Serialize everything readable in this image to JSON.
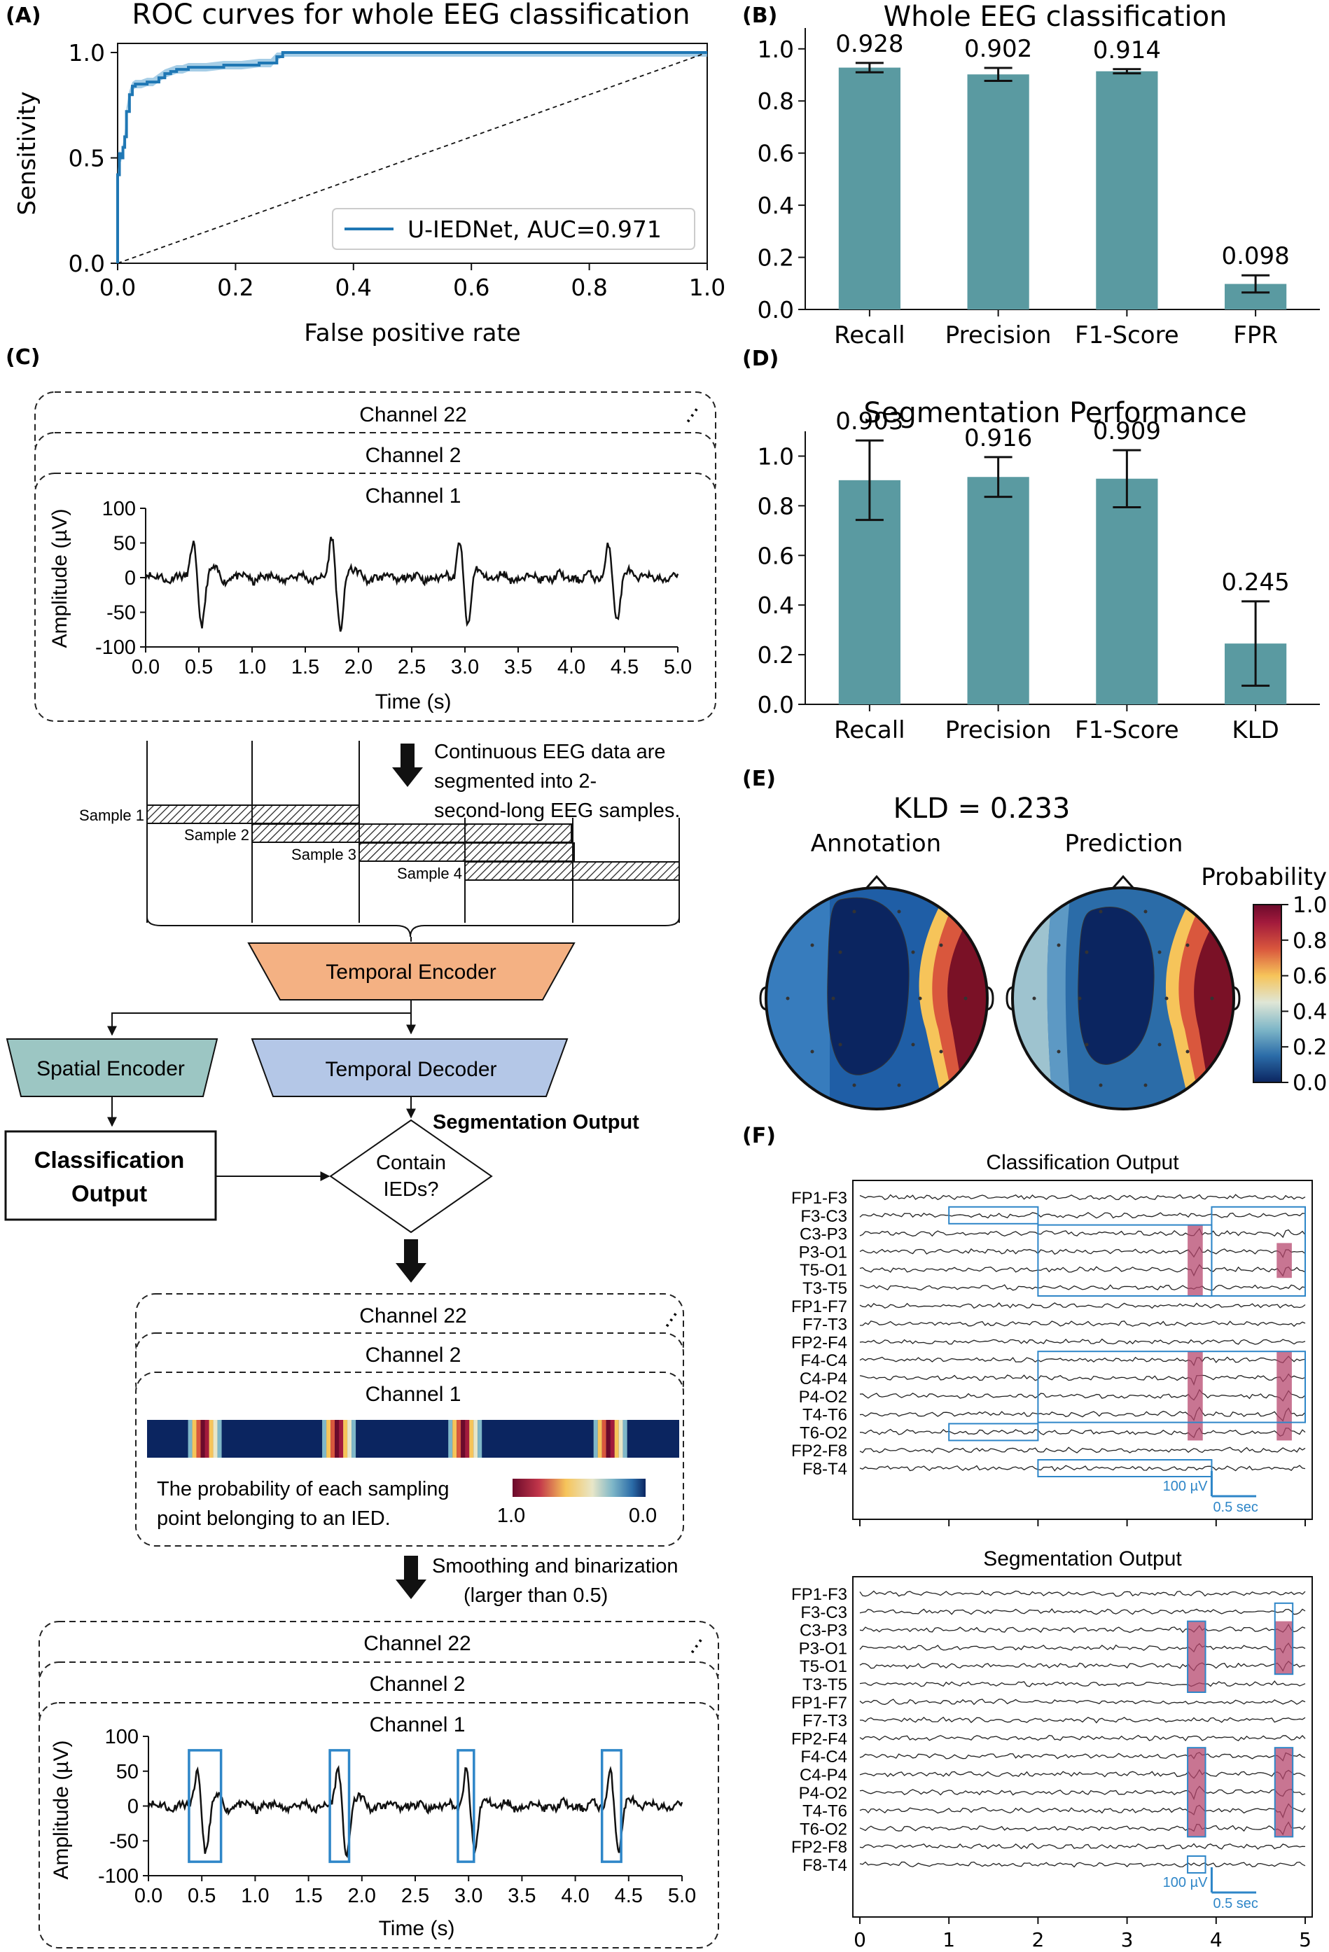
{
  "panel_labels": {
    "a": "(A)",
    "b": "(B)",
    "c": "(C)",
    "d": "(D)",
    "e": "(E)",
    "f": "(F)"
  },
  "colors": {
    "teal_bar": "#5a9aa1",
    "roc_line": "#1f77b4",
    "roc_band": "#7fb8dc",
    "encoder_orange": "#f4b183",
    "spatial_teal": "#9cc6c3",
    "decoder_blue": "#b4c7e7",
    "ied_highlight": "#b5476e",
    "box_blue": "#2e86c8"
  },
  "chart_data": [
    {
      "id": "A",
      "type": "line",
      "title": "ROC curves for whole EEG classification",
      "xlabel": "False positive rate",
      "ylabel": "Sensitivity",
      "xlim": [
        0,
        1
      ],
      "ylim": [
        0,
        1
      ],
      "xticks": [
        "0.0",
        "0.2",
        "0.4",
        "0.6",
        "0.8",
        "1.0"
      ],
      "yticks": [
        "0.0",
        "0.5",
        "1.0"
      ],
      "legend": "lower-right",
      "series": [
        {
          "name": "U-IEDNet, AUC=0.971",
          "x": [
            0,
            0,
            0.003,
            0.006,
            0.009,
            0.012,
            0.015,
            0.02,
            0.025,
            0.03,
            0.04,
            0.05,
            0.06,
            0.07,
            0.08,
            0.09,
            0.1,
            0.11,
            0.12,
            0.15,
            0.18,
            0.21,
            0.24,
            0.26,
            0.27,
            0.28,
            1.0
          ],
          "y": [
            0,
            0.42,
            0.52,
            0.5,
            0.55,
            0.6,
            0.72,
            0.8,
            0.84,
            0.85,
            0.85,
            0.86,
            0.86,
            0.88,
            0.9,
            0.91,
            0.92,
            0.92,
            0.93,
            0.93,
            0.94,
            0.94,
            0.95,
            0.95,
            0.98,
            1.0,
            1.0
          ]
        },
        {
          "x": [
            0,
            1
          ],
          "y": [
            0,
            1
          ]
        }
      ]
    },
    {
      "id": "B",
      "type": "bar",
      "title": "Whole EEG classification",
      "categories": [
        "Recall",
        "Precision",
        "F1-Score",
        "FPR"
      ],
      "values": [
        0.928,
        0.902,
        0.914,
        0.098
      ],
      "errors": [
        0.018,
        0.025,
        0.008,
        0.033
      ],
      "value_labels": [
        "0.928",
        "0.902",
        "0.914",
        "0.098"
      ],
      "ylim": [
        0,
        1.08
      ],
      "yticks": [
        "0.0",
        "0.2",
        "0.4",
        "0.6",
        "0.8",
        "1.0"
      ]
    },
    {
      "id": "D",
      "type": "bar",
      "title": "Segmentation Performance",
      "categories": [
        "Recall",
        "Precision",
        "F1-Score",
        "KLD"
      ],
      "values": [
        0.903,
        0.916,
        0.909,
        0.245
      ],
      "errors": [
        0.16,
        0.08,
        0.115,
        0.17
      ],
      "value_labels": [
        "0.903",
        "0.916",
        "0.909",
        "0.245"
      ],
      "ylim": [
        0,
        1.1
      ],
      "yticks": [
        "0.0",
        "0.2",
        "0.4",
        "0.6",
        "0.8",
        "1.0"
      ]
    },
    {
      "id": "C-top",
      "type": "line",
      "xlabel": "Time (s)",
      "ylabel": "Amplitude (µV)",
      "xlim": [
        0,
        5
      ],
      "ylim": [
        -100,
        100
      ],
      "xticks": [
        "0.0",
        "0.5",
        "1.0",
        "1.5",
        "2.0",
        "2.5",
        "3.0",
        "3.5",
        "4.0",
        "4.5",
        "5.0"
      ],
      "yticks": [
        "100",
        "50",
        "0",
        "-50",
        "-100"
      ],
      "spikes_at_s": [
        0.45,
        1.75,
        2.95,
        4.35
      ]
    },
    {
      "id": "C-bottom",
      "type": "line",
      "xlabel": "Time (s)",
      "ylabel": "Amplitude (µV)",
      "xlim": [
        0,
        5
      ],
      "ylim": [
        -100,
        100
      ],
      "xticks": [
        "0.0",
        "0.5",
        "1.0",
        "1.5",
        "2.0",
        "2.5",
        "3.0",
        "3.5",
        "4.0",
        "4.5",
        "5.0"
      ],
      "yticks": [
        "100",
        "50",
        "0",
        "-50",
        "-100"
      ],
      "ied_boxes_s": [
        [
          0.38,
          0.68
        ],
        [
          1.7,
          1.88
        ],
        [
          2.9,
          3.05
        ],
        [
          4.25,
          4.43
        ]
      ]
    },
    {
      "id": "E",
      "type": "heatmap",
      "title": "KLD = 0.233",
      "subtitles": [
        "Annotation",
        "Prediction"
      ],
      "colorbar_label": "Probability",
      "colorbar_ticks": [
        "1.0",
        "0.8",
        "0.6",
        "0.4",
        "0.2",
        "0.0"
      ]
    },
    {
      "id": "F",
      "type": "line",
      "subtitles": [
        "Classification Output",
        "Segmentation Output"
      ],
      "channels": [
        "FP1-F3",
        "F3-C3",
        "C3-P3",
        "P3-O1",
        "T5-O1",
        "T3-T5",
        "FP1-F7",
        "F7-T3",
        "FP2-F4",
        "F4-C4",
        "C4-P4",
        "P4-O2",
        "T4-T6",
        "T6-O2",
        "FP2-F8",
        "F8-T4"
      ],
      "xticks": [
        "0",
        "1",
        "2",
        "3",
        "4",
        "5"
      ],
      "scale_amplitude": "100 µV",
      "scale_time": "0.5 sec",
      "ied_channels": [
        "C3-P3",
        "P3-O1",
        "T5-O1",
        "F4-C4",
        "C4-P4",
        "P4-O2",
        "T4-T6",
        "T6-O2"
      ]
    }
  ],
  "diagram": {
    "channels": [
      "Channel 22",
      "Channel 2",
      "Channel 1"
    ],
    "segment_note": "Continuous EEG data are segmented into 2-second-long EEG samples.",
    "samples": [
      "Sample 1",
      "Sample 2",
      "Sample 3",
      "Sample 4"
    ],
    "temporal_encoder": "Temporal Encoder",
    "spatial_encoder": "Spatial Encoder",
    "temporal_decoder": "Temporal Decoder",
    "classification_output": [
      "Classification",
      "Output"
    ],
    "segmentation_output": "Segmentation Output",
    "decision": [
      "Contain",
      "IEDs?"
    ],
    "prob_caption": [
      "The probability of each sampling",
      "point belonging to an IED."
    ],
    "prob_cbar": [
      "1.0",
      "0.0"
    ],
    "smoothing_note": [
      "Smoothing and binarization",
      "(larger than 0.5)"
    ]
  }
}
